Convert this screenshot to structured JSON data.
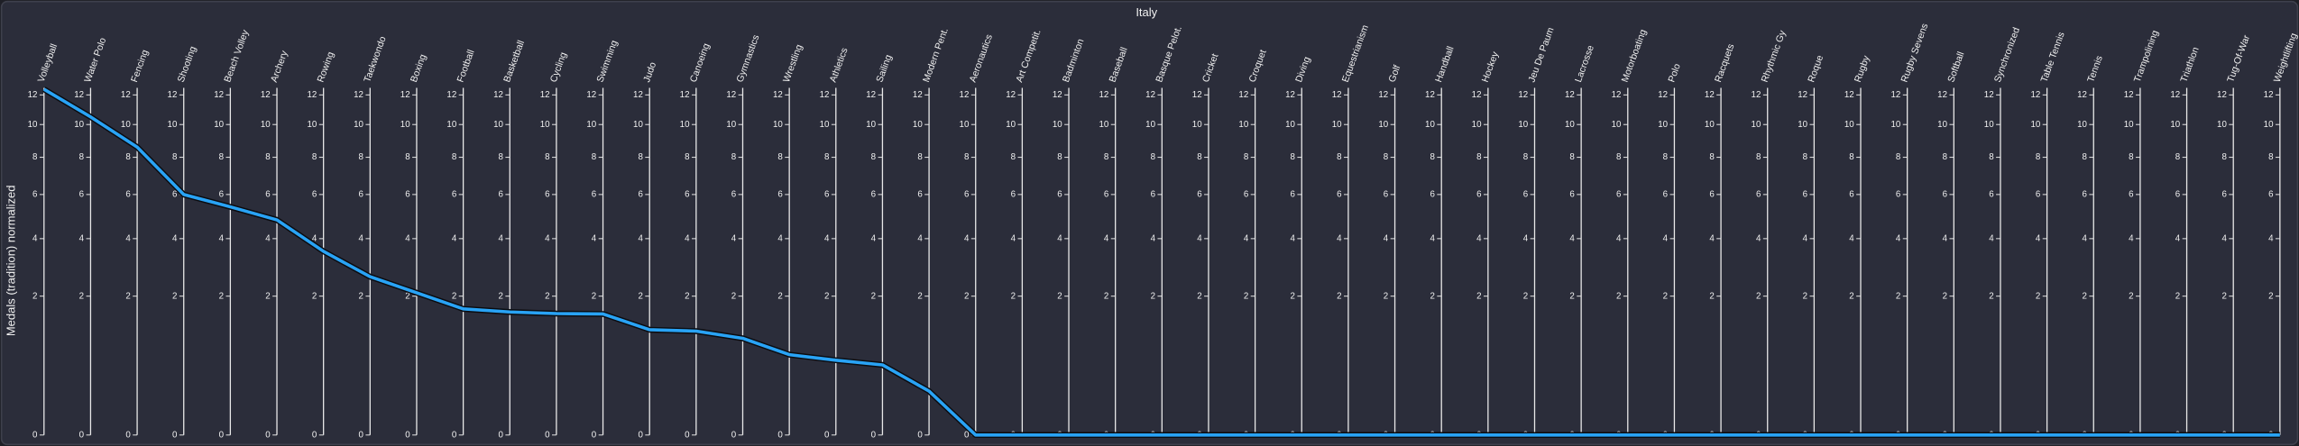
{
  "chart_data": {
    "type": "parallel-line",
    "title": "Italy",
    "y_label": "Medals (tradition) normalized",
    "categories": [
      "Volleyball",
      "Water Polo",
      "Fencing",
      "Shooting",
      "Beach Volley",
      "Archery",
      "Rowing",
      "Taekwondo",
      "Boxing",
      "Football",
      "Basketball",
      "Cycling",
      "Swimming",
      "Judo",
      "Canoeing",
      "Gymnastics",
      "Wrestling",
      "Athletics",
      "Sailing",
      "Modern Pent.",
      "Aeronautics",
      "Art Competit.",
      "Badminton",
      "Baseball",
      "Basque Pelot.",
      "Cricket",
      "Croquet",
      "Diving",
      "Equestrianism",
      "Golf",
      "Handball",
      "Hockey",
      "Jeu De Paum",
      "Lacrosse",
      "Motorboating",
      "Polo",
      "Racquets",
      "Rhythmic Gy",
      "Roque",
      "Rugby",
      "Rugby Sevens",
      "Softball",
      "Synchronized",
      "Table Tennis",
      "Tennis",
      "Trampolining",
      "Triathlon",
      "Tug-Of-War",
      "Weightlifting"
    ],
    "values": [
      12.4,
      10.5,
      8.6,
      6.0,
      5.4,
      4.8,
      3.5,
      2.6,
      2.1,
      1.65,
      1.57,
      1.53,
      1.52,
      1.15,
      1.12,
      0.97,
      0.67,
      0.58,
      0.51,
      0.2,
      0,
      0,
      0,
      0,
      0,
      0,
      0,
      0,
      0,
      0,
      0,
      0,
      0,
      0,
      0,
      0,
      0,
      0,
      0,
      0,
      0,
      0,
      0,
      0,
      0,
      0,
      0,
      0,
      0
    ],
    "color": "#29a3f5",
    "scale": "sqrt",
    "ylim": [
      0,
      12.5
    ],
    "yticks": [
      0,
      2,
      4,
      6,
      8,
      10,
      12
    ]
  }
}
